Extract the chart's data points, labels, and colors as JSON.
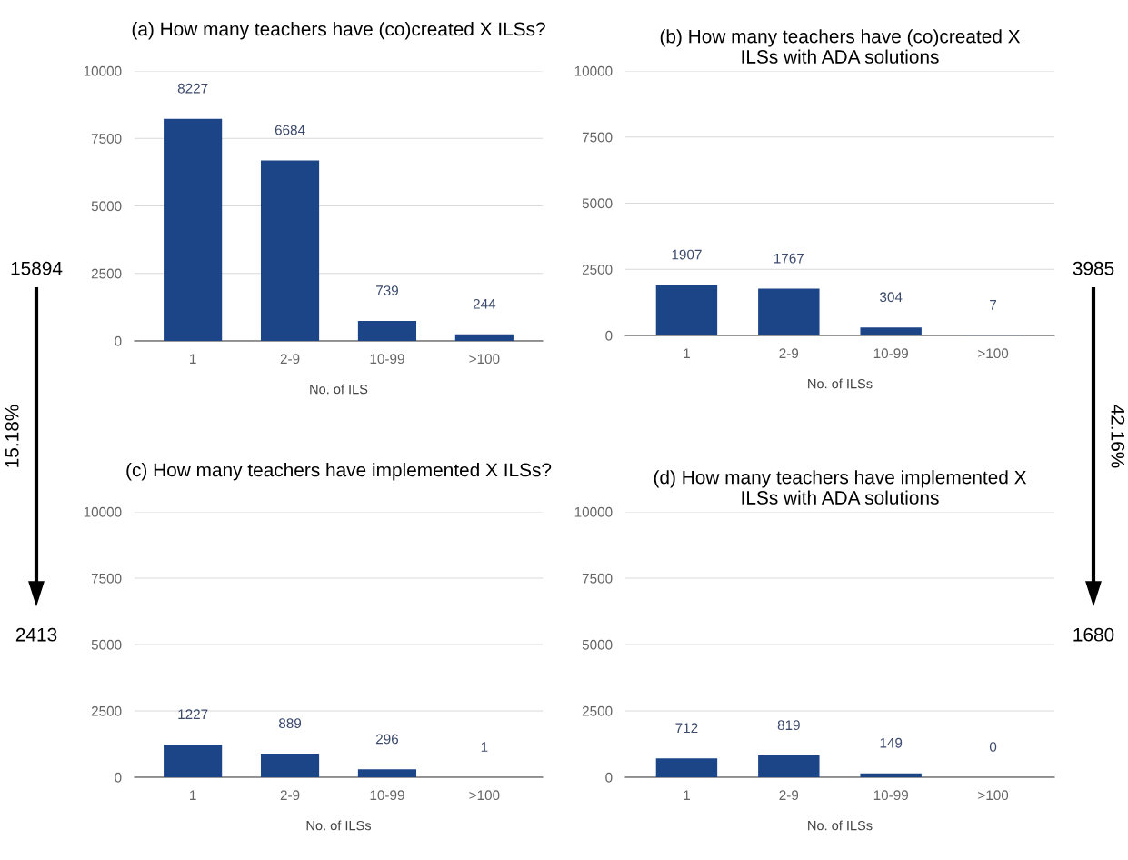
{
  "chart_data": [
    {
      "type": "bar",
      "title": "(a) How many teachers have (co)created X ILSs?",
      "xlabel": "No. of ILS",
      "categories": [
        "1",
        "2-9",
        "10-99",
        ">100"
      ],
      "values": [
        8227,
        6684,
        739,
        244
      ],
      "color": "#1c4587",
      "ylim": [
        0,
        10000
      ],
      "yticks": [
        0,
        2500,
        5000,
        7500,
        10000
      ],
      "grid": "y",
      "data_labels": true,
      "annotations": [
        "15894",
        "15.18%"
      ]
    },
    {
      "type": "bar",
      "title": "(b) How many teachers have (co)created X\nILSs with ADA solutions",
      "xlabel": "No. of ILSs",
      "categories": [
        "1",
        "2-9",
        "10-99",
        ">100"
      ],
      "values": [
        1907,
        1767,
        304,
        7
      ],
      "color": "#1c4587",
      "ylim": [
        0,
        10000
      ],
      "yticks": [
        0,
        2500,
        5000,
        7500,
        10000
      ],
      "grid": "y",
      "data_labels": true,
      "annotations": [
        "3985",
        "42.16%"
      ]
    },
    {
      "type": "bar",
      "title": "(c) How many teachers have implemented X ILSs?",
      "xlabel": "No. of ILSs",
      "categories": [
        "1",
        "2-9",
        "10-99",
        ">100"
      ],
      "values": [
        1227,
        889,
        296,
        1
      ],
      "color": "#1c4587",
      "ylim": [
        0,
        10000
      ],
      "yticks": [
        0,
        2500,
        5000,
        7500,
        10000
      ],
      "grid": "y",
      "data_labels": true,
      "annotations": [
        "2413"
      ]
    },
    {
      "type": "bar",
      "title": "(d) How many teachers have implemented X\nILSs with ADA solutions",
      "xlabel": "No. of ILSs",
      "categories": [
        "1",
        "2-9",
        "10-99",
        ">100"
      ],
      "values": [
        712,
        819,
        149,
        0
      ],
      "color": "#1c4587",
      "ylim": [
        0,
        10000
      ],
      "yticks": [
        0,
        2500,
        5000,
        7500,
        10000
      ],
      "grid": "y",
      "data_labels": true,
      "annotations": [
        "1680"
      ]
    }
  ]
}
